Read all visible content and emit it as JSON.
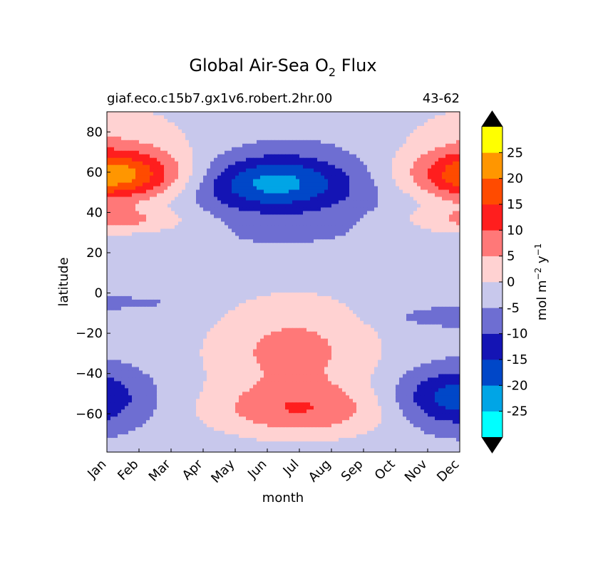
{
  "chart_data": {
    "type": "contour",
    "title": "Global Air-Sea O",
    "title_subscript": "2",
    "title_suffix": " Flux",
    "subtitle_left": "giaf.eco.c15b7.gx1v6.robert.2hr.00",
    "subtitle_right": "43-62",
    "xlabel": "month",
    "ylabel": "latitude",
    "x_ticks": [
      "Jan",
      "Feb",
      "Mar",
      "Apr",
      "May",
      "Jun",
      "Jul",
      "Aug",
      "Sep",
      "Oct",
      "Nov",
      "Dec"
    ],
    "y_ticks": [
      "80",
      "60",
      "40",
      "20",
      "0",
      "−20",
      "−40",
      "−60"
    ],
    "y_tick_values": [
      80,
      60,
      40,
      20,
      0,
      -20,
      -40,
      -60
    ],
    "ylim": [
      -79,
      90
    ],
    "colorbar": {
      "label_main": "mol m",
      "label_exp1": "−2",
      "label_mid": " y",
      "label_exp2": "−1",
      "tick_labels": [
        "25",
        "20",
        "15",
        "10",
        "5",
        "0",
        "-5",
        "-10",
        "-15",
        "-20",
        "-25"
      ],
      "tick_values": [
        25,
        20,
        15,
        10,
        5,
        0,
        -5,
        -10,
        -15,
        -20,
        -25
      ],
      "levels": [
        -30,
        -25,
        -20,
        -15,
        -10,
        -5,
        0,
        5,
        10,
        15,
        20,
        25,
        30
      ],
      "colors": [
        "#00ffff",
        "#00a5e6",
        "#0047c8",
        "#1414b4",
        "#6e6ed2",
        "#c8c8ec",
        "#ffd2d2",
        "#ff7878",
        "#ff1e1e",
        "#ff4b00",
        "#ff9600",
        "#ffff00"
      ],
      "extend_low_color": "#000000",
      "extend_high_color": "#000000"
    }
  }
}
